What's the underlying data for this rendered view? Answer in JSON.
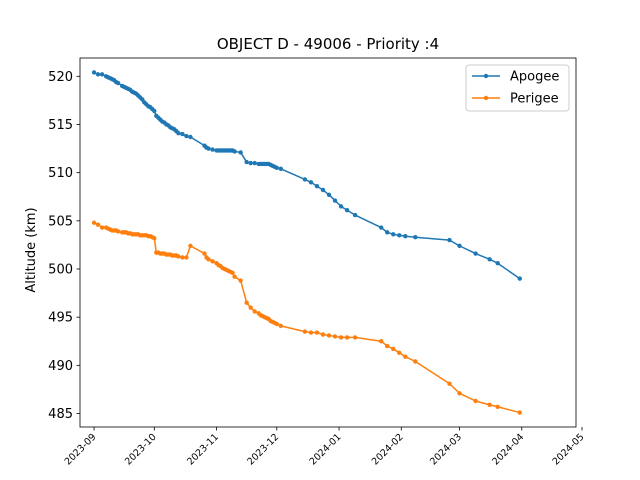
{
  "chart_data": {
    "type": "line",
    "title": "OBJECT D - 49006 - Priority :4",
    "ylabel": "Altitude (km)",
    "xlabel": "",
    "ylim": [
      483.6,
      521.9
    ],
    "xlim": [
      "2023-08-25",
      "2024-04-28"
    ],
    "yticks": [
      485,
      490,
      495,
      500,
      505,
      510,
      515,
      520
    ],
    "xticks": [
      "2023-09",
      "2023-10",
      "2023-11",
      "2023-12",
      "2024-01",
      "2024-02",
      "2024-03",
      "2024-04",
      "2024-05"
    ],
    "grid": false,
    "legend_position": "top-right",
    "series": [
      {
        "name": "Apogee",
        "color": "#1f77b4",
        "points": [
          [
            "2023-09-01",
            520.4
          ],
          [
            "2023-09-03",
            520.2
          ],
          [
            "2023-09-05",
            520.2
          ],
          [
            "2023-09-07",
            520.0
          ],
          [
            "2023-09-08",
            519.9
          ],
          [
            "2023-09-09",
            519.8
          ],
          [
            "2023-09-10",
            519.7
          ],
          [
            "2023-09-11",
            519.6
          ],
          [
            "2023-09-12",
            519.4
          ],
          [
            "2023-09-13",
            519.3
          ],
          [
            "2023-09-15",
            519.0
          ],
          [
            "2023-09-16",
            518.9
          ],
          [
            "2023-09-17",
            518.8
          ],
          [
            "2023-09-18",
            518.7
          ],
          [
            "2023-09-19",
            518.6
          ],
          [
            "2023-09-20",
            518.4
          ],
          [
            "2023-09-21",
            518.3
          ],
          [
            "2023-09-22",
            518.2
          ],
          [
            "2023-09-23",
            518.0
          ],
          [
            "2023-09-24",
            517.8
          ],
          [
            "2023-09-25",
            517.6
          ],
          [
            "2023-09-26",
            517.3
          ],
          [
            "2023-09-27",
            517.1
          ],
          [
            "2023-09-28",
            516.9
          ],
          [
            "2023-09-29",
            516.8
          ],
          [
            "2023-09-30",
            516.6
          ],
          [
            "2023-10-01",
            516.4
          ],
          [
            "2023-10-02",
            515.9
          ],
          [
            "2023-10-03",
            515.7
          ],
          [
            "2023-10-04",
            515.5
          ],
          [
            "2023-10-05",
            515.3
          ],
          [
            "2023-10-06",
            515.2
          ],
          [
            "2023-10-07",
            515.0
          ],
          [
            "2023-10-08",
            514.9
          ],
          [
            "2023-10-09",
            514.7
          ],
          [
            "2023-10-10",
            514.6
          ],
          [
            "2023-10-11",
            514.5
          ],
          [
            "2023-10-12",
            514.3
          ],
          [
            "2023-10-13",
            514.1
          ],
          [
            "2023-10-15",
            514.0
          ],
          [
            "2023-10-17",
            513.8
          ],
          [
            "2023-10-19",
            513.7
          ],
          [
            "2023-10-26",
            512.8
          ],
          [
            "2023-10-27",
            512.6
          ],
          [
            "2023-10-28",
            512.5
          ],
          [
            "2023-10-30",
            512.4
          ],
          [
            "2023-11-01",
            512.3
          ],
          [
            "2023-11-02",
            512.3
          ],
          [
            "2023-11-03",
            512.3
          ],
          [
            "2023-11-04",
            512.3
          ],
          [
            "2023-11-05",
            512.3
          ],
          [
            "2023-11-06",
            512.3
          ],
          [
            "2023-11-07",
            512.3
          ],
          [
            "2023-11-08",
            512.3
          ],
          [
            "2023-11-09",
            512.3
          ],
          [
            "2023-11-10",
            512.2
          ],
          [
            "2023-11-13",
            512.1
          ],
          [
            "2023-11-16",
            511.1
          ],
          [
            "2023-11-18",
            511.0
          ],
          [
            "2023-11-20",
            511.0
          ],
          [
            "2023-11-22",
            510.9
          ],
          [
            "2023-11-23",
            510.9
          ],
          [
            "2023-11-24",
            510.9
          ],
          [
            "2023-11-25",
            510.9
          ],
          [
            "2023-11-26",
            510.9
          ],
          [
            "2023-11-27",
            510.9
          ],
          [
            "2023-11-28",
            510.8
          ],
          [
            "2023-11-29",
            510.7
          ],
          [
            "2023-11-30",
            510.6
          ],
          [
            "2023-12-01",
            510.5
          ],
          [
            "2023-12-03",
            510.4
          ],
          [
            "2023-12-15",
            509.3
          ],
          [
            "2023-12-18",
            509.0
          ],
          [
            "2023-12-21",
            508.6
          ],
          [
            "2023-12-24",
            508.2
          ],
          [
            "2023-12-27",
            507.7
          ],
          [
            "2023-12-30",
            507.1
          ],
          [
            "2024-01-02",
            506.5
          ],
          [
            "2024-01-05",
            506.1
          ],
          [
            "2024-01-09",
            505.6
          ],
          [
            "2024-01-22",
            504.3
          ],
          [
            "2024-01-25",
            503.8
          ],
          [
            "2024-01-28",
            503.6
          ],
          [
            "2024-01-31",
            503.5
          ],
          [
            "2024-02-03",
            503.4
          ],
          [
            "2024-02-08",
            503.3
          ],
          [
            "2024-02-25",
            503.0
          ],
          [
            "2024-03-01",
            502.4
          ],
          [
            "2024-03-09",
            501.6
          ],
          [
            "2024-03-16",
            501.0
          ],
          [
            "2024-03-20",
            500.6
          ],
          [
            "2024-03-31",
            499.0
          ]
        ]
      },
      {
        "name": "Perigee",
        "color": "#ff7f0e",
        "points": [
          [
            "2023-09-01",
            504.8
          ],
          [
            "2023-09-03",
            504.6
          ],
          [
            "2023-09-05",
            504.3
          ],
          [
            "2023-09-07",
            504.3
          ],
          [
            "2023-09-08",
            504.2
          ],
          [
            "2023-09-09",
            504.1
          ],
          [
            "2023-09-10",
            504.0
          ],
          [
            "2023-09-11",
            504.0
          ],
          [
            "2023-09-12",
            504.0
          ],
          [
            "2023-09-13",
            503.9
          ],
          [
            "2023-09-15",
            503.8
          ],
          [
            "2023-09-16",
            503.8
          ],
          [
            "2023-09-17",
            503.8
          ],
          [
            "2023-09-18",
            503.7
          ],
          [
            "2023-09-19",
            503.7
          ],
          [
            "2023-09-20",
            503.6
          ],
          [
            "2023-09-21",
            503.6
          ],
          [
            "2023-09-22",
            503.6
          ],
          [
            "2023-09-23",
            503.6
          ],
          [
            "2023-09-24",
            503.5
          ],
          [
            "2023-09-25",
            503.5
          ],
          [
            "2023-09-26",
            503.5
          ],
          [
            "2023-09-27",
            503.5
          ],
          [
            "2023-09-28",
            503.4
          ],
          [
            "2023-09-29",
            503.4
          ],
          [
            "2023-09-30",
            503.3
          ],
          [
            "2023-10-01",
            503.2
          ],
          [
            "2023-10-02",
            501.7
          ],
          [
            "2023-10-03",
            501.7
          ],
          [
            "2023-10-04",
            501.6
          ],
          [
            "2023-10-05",
            501.6
          ],
          [
            "2023-10-06",
            501.6
          ],
          [
            "2023-10-07",
            501.5
          ],
          [
            "2023-10-08",
            501.5
          ],
          [
            "2023-10-09",
            501.5
          ],
          [
            "2023-10-10",
            501.4
          ],
          [
            "2023-10-11",
            501.4
          ],
          [
            "2023-10-12",
            501.4
          ],
          [
            "2023-10-13",
            501.3
          ],
          [
            "2023-10-15",
            501.2
          ],
          [
            "2023-10-17",
            501.2
          ],
          [
            "2023-10-19",
            502.4
          ],
          [
            "2023-10-26",
            501.6
          ],
          [
            "2023-10-27",
            501.2
          ],
          [
            "2023-10-28",
            501.0
          ],
          [
            "2023-10-30",
            500.8
          ],
          [
            "2023-11-01",
            500.6
          ],
          [
            "2023-11-02",
            500.4
          ],
          [
            "2023-11-03",
            500.3
          ],
          [
            "2023-11-04",
            500.1
          ],
          [
            "2023-11-05",
            500.0
          ],
          [
            "2023-11-06",
            499.9
          ],
          [
            "2023-11-07",
            499.8
          ],
          [
            "2023-11-08",
            499.7
          ],
          [
            "2023-11-09",
            499.6
          ],
          [
            "2023-11-10",
            499.2
          ],
          [
            "2023-11-13",
            498.8
          ],
          [
            "2023-11-16",
            496.5
          ],
          [
            "2023-11-18",
            496.0
          ],
          [
            "2023-11-20",
            495.6
          ],
          [
            "2023-11-22",
            495.4
          ],
          [
            "2023-11-23",
            495.2
          ],
          [
            "2023-11-24",
            495.1
          ],
          [
            "2023-11-25",
            495.0
          ],
          [
            "2023-11-26",
            494.9
          ],
          [
            "2023-11-27",
            494.8
          ],
          [
            "2023-11-28",
            494.6
          ],
          [
            "2023-11-29",
            494.5
          ],
          [
            "2023-11-30",
            494.4
          ],
          [
            "2023-12-01",
            494.3
          ],
          [
            "2023-12-03",
            494.1
          ],
          [
            "2023-12-15",
            493.5
          ],
          [
            "2023-12-18",
            493.4
          ],
          [
            "2023-12-21",
            493.4
          ],
          [
            "2023-12-24",
            493.2
          ],
          [
            "2023-12-27",
            493.1
          ],
          [
            "2023-12-30",
            493.0
          ],
          [
            "2024-01-02",
            492.9
          ],
          [
            "2024-01-05",
            492.9
          ],
          [
            "2024-01-09",
            492.9
          ],
          [
            "2024-01-22",
            492.5
          ],
          [
            "2024-01-25",
            492.0
          ],
          [
            "2024-01-28",
            491.7
          ],
          [
            "2024-01-31",
            491.3
          ],
          [
            "2024-02-03",
            490.9
          ],
          [
            "2024-02-08",
            490.4
          ],
          [
            "2024-02-25",
            488.1
          ],
          [
            "2024-03-01",
            487.1
          ],
          [
            "2024-03-09",
            486.3
          ],
          [
            "2024-03-16",
            485.9
          ],
          [
            "2024-03-20",
            485.7
          ],
          [
            "2024-03-31",
            485.1
          ]
        ]
      }
    ]
  }
}
